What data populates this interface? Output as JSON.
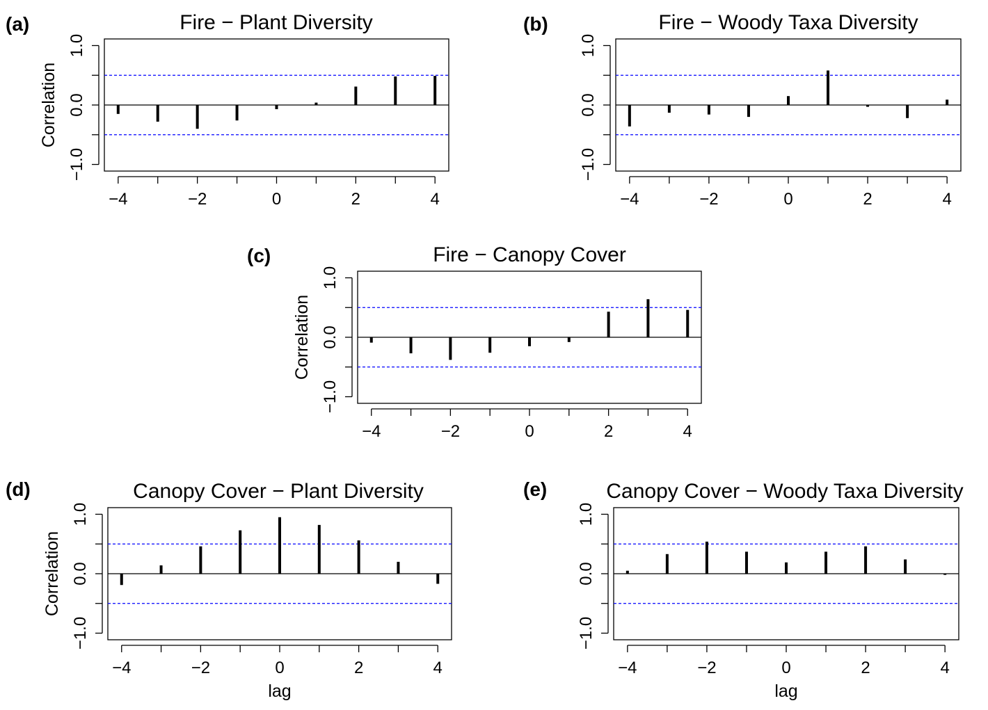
{
  "chart_data": [
    {
      "type": "bar",
      "panel": "(a)",
      "title": "Fire − Plant Diversity",
      "ylabel": "Correlation",
      "xlabel": "",
      "x": [
        -4,
        -3,
        -2,
        -1,
        0,
        1,
        2,
        3,
        4
      ],
      "values": [
        -0.15,
        -0.28,
        -0.4,
        -0.26,
        -0.07,
        0.04,
        0.31,
        0.48,
        0.49
      ],
      "xlim": [
        -4,
        4
      ],
      "ylim": [
        -1,
        1
      ],
      "xticks": [
        "−4",
        "−2",
        "0",
        "2",
        "4"
      ],
      "yticks": [
        "−1.0",
        "0.0",
        "1.0"
      ],
      "confidence_band": 0.5,
      "confidence_color": "#0000ff"
    },
    {
      "type": "bar",
      "panel": "(b)",
      "title": "Fire − Woody Taxa Diversity",
      "ylabel": "",
      "xlabel": "",
      "x": [
        -4,
        -3,
        -2,
        -1,
        0,
        1,
        2,
        3,
        4
      ],
      "values": [
        -0.36,
        -0.13,
        -0.16,
        -0.2,
        0.15,
        0.58,
        -0.03,
        -0.22,
        0.09
      ],
      "xlim": [
        -4,
        4
      ],
      "ylim": [
        -1,
        1
      ],
      "xticks": [
        "−4",
        "−2",
        "0",
        "2",
        "4"
      ],
      "yticks": [
        "−1.0",
        "0.0",
        "1.0"
      ],
      "confidence_band": 0.5,
      "confidence_color": "#0000ff"
    },
    {
      "type": "bar",
      "panel": "(c)",
      "title": "Fire − Canopy Cover",
      "ylabel": "Correlation",
      "xlabel": "",
      "x": [
        -4,
        -3,
        -2,
        -1,
        0,
        1,
        2,
        3,
        4
      ],
      "values": [
        -0.09,
        -0.27,
        -0.38,
        -0.26,
        -0.15,
        -0.08,
        0.43,
        0.64,
        0.46
      ],
      "xlim": [
        -4,
        4
      ],
      "ylim": [
        -1,
        1
      ],
      "xticks": [
        "−4",
        "−2",
        "0",
        "2",
        "4"
      ],
      "yticks": [
        "−1.0",
        "0.0",
        "1.0"
      ],
      "confidence_band": 0.5,
      "confidence_color": "#0000ff"
    },
    {
      "type": "bar",
      "panel": "(d)",
      "title": "Canopy Cover − Plant Diversity",
      "ylabel": "Correlation",
      "xlabel": "lag",
      "x": [
        -4,
        -3,
        -2,
        -1,
        0,
        1,
        2,
        3,
        4
      ],
      "values": [
        -0.19,
        0.14,
        0.46,
        0.73,
        0.95,
        0.82,
        0.56,
        0.2,
        -0.17
      ],
      "xlim": [
        -4,
        4
      ],
      "ylim": [
        -1,
        1
      ],
      "xticks": [
        "−4",
        "−2",
        "0",
        "2",
        "4"
      ],
      "yticks": [
        "−1.0",
        "0.0",
        "1.0"
      ],
      "confidence_band": 0.5,
      "confidence_color": "#0000ff"
    },
    {
      "type": "bar",
      "panel": "(e)",
      "title": "Canopy Cover − Woody Taxa Diversity",
      "ylabel": "",
      "xlabel": "lag",
      "x": [
        -4,
        -3,
        -2,
        -1,
        0,
        1,
        2,
        3,
        4
      ],
      "values": [
        0.05,
        0.33,
        0.54,
        0.37,
        0.19,
        0.37,
        0.46,
        0.24,
        -0.02
      ],
      "xlim": [
        -4,
        4
      ],
      "ylim": [
        -1,
        1
      ],
      "xticks": [
        "−4",
        "−2",
        "0",
        "2",
        "4"
      ],
      "yticks": [
        "−1.0",
        "0.0",
        "1.0"
      ],
      "confidence_band": 0.5,
      "confidence_color": "#0000ff"
    }
  ]
}
